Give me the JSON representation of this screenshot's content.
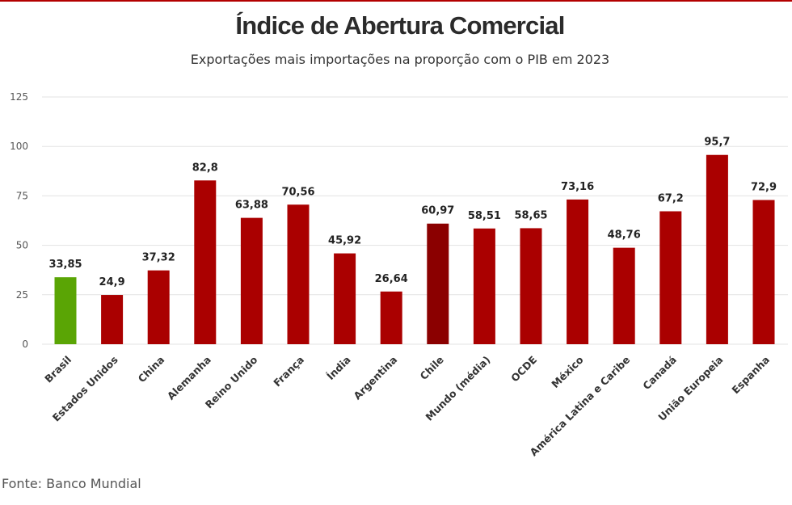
{
  "chart_data": {
    "type": "bar",
    "title": "Índice de Abertura Comercial",
    "subtitle": "Exportações mais importações na proporção com o PIB em 2023",
    "xlabel": "",
    "ylabel": "",
    "ylim": [
      0,
      125
    ],
    "yticks": [
      0,
      25,
      50,
      75,
      100,
      125
    ],
    "grid": true,
    "categories": [
      "Brasil",
      "Estados Unidos",
      "China",
      "Alemanha",
      "Reino Unido",
      "França",
      "Índia",
      "Argentina",
      "Chile",
      "Mundo (média)",
      "OCDE",
      "México",
      "América Latina e Caribe",
      "Canadá",
      "União Europeia",
      "Espanha"
    ],
    "values": [
      33.85,
      24.9,
      37.32,
      82.8,
      63.88,
      70.56,
      45.92,
      26.64,
      60.97,
      58.51,
      58.65,
      73.16,
      48.76,
      67.2,
      95.7,
      72.9
    ],
    "value_labels": [
      "33,85",
      "24,9",
      "37,32",
      "82,8",
      "63,88",
      "70,56",
      "45,92",
      "26,64",
      "60,97",
      "58,51",
      "58,65",
      "73,16",
      "48,76",
      "67,2",
      "95,7",
      "72,9"
    ],
    "colors": {
      "default": "#aa0000",
      "highlight_brasil": "#5aa505",
      "highlight_chile": "#8b0000",
      "grid": "#e3e3e3",
      "axis_text": "#555555",
      "label_text": "#222222"
    },
    "bar_colors": [
      "#5aa505",
      "#aa0000",
      "#aa0000",
      "#aa0000",
      "#aa0000",
      "#aa0000",
      "#aa0000",
      "#aa0000",
      "#8b0000",
      "#aa0000",
      "#aa0000",
      "#aa0000",
      "#aa0000",
      "#aa0000",
      "#aa0000",
      "#aa0000"
    ]
  },
  "source": "Fonte: Banco Mundial"
}
